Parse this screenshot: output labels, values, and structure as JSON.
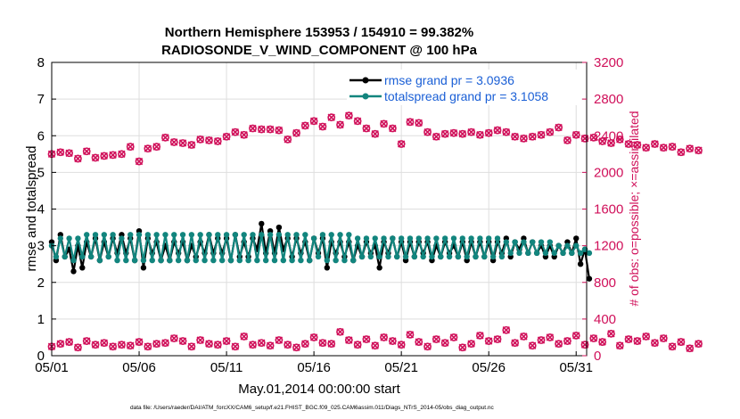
{
  "chart_data": {
    "type": "line",
    "title_line1": "Northern Hemisphere 153953 / 154910 = 99.382%",
    "title_line2": "RADIOSONDE_V_WIND_COMPONENT @ 100 hPa",
    "xlabel": "May.01,2014 00:00:00 start",
    "ylabel_left": "rmse and totalspread",
    "ylabel_right": "# of obs: o=possible; ×=assimilated",
    "xlim": [
      1,
      31.6
    ],
    "ylim_left": [
      0,
      8
    ],
    "ylim_right": [
      0,
      3200
    ],
    "x_ticks": [
      1,
      6,
      11,
      16,
      21,
      26,
      31
    ],
    "x_tick_labels": [
      "05/01",
      "05/06",
      "05/11",
      "05/16",
      "05/21",
      "05/26",
      "05/31"
    ],
    "y_ticks_left": [
      "0",
      "1",
      "2",
      "3",
      "4",
      "5",
      "6",
      "7",
      "8"
    ],
    "y_ticks_right": [
      "0",
      "400",
      "800",
      "1200",
      "1600",
      "2000",
      "2400",
      "2800",
      "3200"
    ],
    "grid": true,
    "legend_position": "top-right",
    "colors": {
      "rmse": "#000000",
      "totalspread": "#12857e",
      "obs": "#d0105a",
      "legend_text": "#1a5fd6"
    },
    "series": [
      {
        "name": "rmse grand pr = 3.0936",
        "axis": "left",
        "x_start": 1.0,
        "x_step": 0.25,
        "values": [
          3.1,
          2.6,
          3.3,
          2.7,
          2.9,
          2.3,
          3.0,
          2.4,
          3.1,
          2.7,
          3.2,
          2.6,
          3.1,
          2.7,
          3.2,
          2.8,
          3.3,
          2.8,
          3.2,
          2.6,
          3.4,
          2.4,
          3.2,
          2.8,
          3.1,
          2.6,
          3.0,
          2.6,
          3.1,
          2.8,
          3.1,
          2.6,
          3.0,
          2.7,
          3.1,
          2.8,
          3.3,
          2.8,
          3.2,
          2.8,
          3.2,
          2.6,
          3.3,
          2.7,
          3.1,
          2.7,
          3.2,
          2.9,
          3.6,
          2.8,
          3.4,
          2.8,
          3.5,
          2.9,
          3.2,
          2.7,
          3.2,
          2.8,
          3.1,
          2.6,
          3.2,
          2.8,
          3.2,
          2.4,
          3.1,
          2.8,
          3.1,
          2.7,
          3.1,
          2.6,
          3.0,
          2.7,
          3.1,
          2.8,
          3.0,
          2.4,
          3.1,
          2.8,
          3.2,
          2.7,
          3.1,
          2.6,
          3.1,
          2.7,
          3.1,
          2.8,
          3.1,
          2.6,
          3.0,
          2.7,
          3.1,
          2.8,
          3.0,
          2.7,
          3.1,
          2.6,
          3.1,
          2.7,
          3.1,
          2.7,
          3.1,
          2.6,
          3.1,
          2.8,
          3.2,
          2.7,
          3.1,
          2.9,
          3.2,
          2.8,
          3.1,
          2.8,
          3.0,
          2.7,
          3.0,
          2.7,
          3.0,
          2.8,
          3.1,
          2.8,
          3.2,
          2.5,
          2.9,
          2.1
        ]
      },
      {
        "name": "totalspread grand pr = 3.1058",
        "axis": "left",
        "x_start": 1.0,
        "x_step": 0.25,
        "values": [
          3.0,
          2.7,
          3.2,
          2.7,
          3.2,
          2.6,
          3.2,
          2.7,
          3.3,
          2.7,
          3.3,
          2.6,
          3.3,
          2.7,
          3.3,
          2.6,
          3.2,
          2.6,
          3.3,
          2.6,
          3.3,
          2.6,
          3.3,
          2.6,
          3.3,
          2.6,
          3.3,
          2.6,
          3.3,
          2.6,
          3.3,
          2.6,
          3.3,
          2.6,
          3.3,
          2.6,
          3.3,
          2.6,
          3.3,
          2.6,
          3.3,
          2.6,
          3.3,
          2.6,
          3.3,
          2.6,
          3.3,
          2.6,
          3.3,
          2.6,
          3.3,
          2.6,
          3.3,
          2.6,
          3.3,
          2.6,
          3.3,
          2.6,
          3.3,
          2.6,
          3.2,
          2.7,
          3.3,
          2.6,
          3.3,
          2.6,
          3.3,
          2.6,
          3.3,
          2.6,
          3.2,
          2.7,
          3.2,
          2.7,
          3.2,
          2.7,
          3.2,
          2.7,
          3.2,
          2.7,
          3.2,
          2.7,
          3.2,
          2.7,
          3.2,
          2.7,
          3.2,
          2.7,
          3.2,
          2.7,
          3.2,
          2.7,
          3.2,
          2.7,
          3.2,
          2.7,
          3.2,
          2.7,
          3.2,
          2.7,
          3.2,
          2.7,
          3.2,
          2.7,
          3.1,
          2.8,
          3.1,
          2.8,
          3.1,
          2.8,
          3.1,
          2.8,
          3.1,
          2.8,
          3.1,
          2.8,
          3.0,
          2.8,
          3.0,
          2.8,
          3.0,
          2.8,
          2.9,
          2.8
        ]
      },
      {
        "name": "obs possible",
        "axis": "right",
        "x_start": 1.0,
        "x_step": 0.5,
        "values_high": [
          2200,
          2220,
          2210,
          2150,
          2230,
          2160,
          2180,
          2190,
          2200,
          2280,
          2120,
          2260,
          2280,
          2380,
          2330,
          2320,
          2300,
          2360,
          2350,
          2340,
          2390,
          2440,
          2410,
          2480,
          2470,
          2470,
          2460,
          2360,
          2430,
          2510,
          2560,
          2500,
          2600,
          2520,
          2620,
          2560,
          2480,
          2420,
          2530,
          2480,
          2310,
          2550,
          2540,
          2440,
          2390,
          2420,
          2430,
          2420,
          2440,
          2410,
          2430,
          2460,
          2440,
          2390,
          2370,
          2390,
          2410,
          2440,
          2490,
          2350,
          2410,
          2370,
          2380,
          2340,
          2320,
          2360,
          2310,
          2300,
          2270,
          2310,
          2270,
          2280,
          2220,
          2260,
          2240
        ],
        "values_low": [
          100,
          130,
          150,
          90,
          160,
          120,
          140,
          100,
          120,
          110,
          150,
          100,
          130,
          140,
          190,
          160,
          100,
          170,
          130,
          120,
          160,
          100,
          210,
          120,
          140,
          110,
          170,
          120,
          90,
          130,
          200,
          140,
          130,
          260,
          170,
          120,
          180,
          110,
          200,
          160,
          120,
          230,
          150,
          100,
          180,
          140,
          200,
          90,
          130,
          220,
          160,
          180,
          280,
          140,
          210,
          110,
          170,
          200,
          130,
          160,
          220,
          120,
          190,
          150,
          240,
          110,
          180,
          160,
          210,
          140,
          190,
          100,
          150,
          80,
          130
        ]
      }
    ]
  },
  "footer": {
    "data_file": "data file: /Users/raeder/DAI/ATM_forcXX/CAM6_setup/f.e21.FHIST_BGC.f09_025.CAM6assim.011/Diags_NTrS_2014-05/obs_diag_output.nc"
  }
}
